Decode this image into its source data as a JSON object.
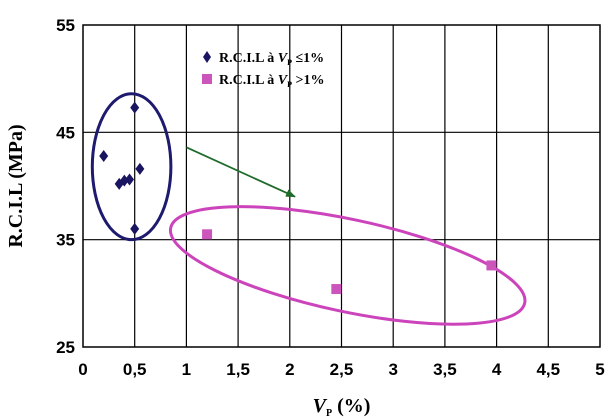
{
  "chart_data": {
    "type": "scatter",
    "xlabel": "V_P (%)",
    "ylabel": "R.C.I.L (MPa)",
    "xlim": [
      0,
      5
    ],
    "ylim": [
      25,
      55
    ],
    "x_ticks": [
      "0",
      "0,5",
      "1",
      "1,5",
      "2",
      "2,5",
      "3",
      "3,5",
      "4",
      "4,5",
      "5"
    ],
    "y_ticks": [
      "25",
      "35",
      "45",
      "55"
    ],
    "grid": true,
    "legend_position": "top-center",
    "series": [
      {
        "name": "R.C.I.L à Vp ≤1%",
        "marker": "diamond",
        "color": "#1a1560",
        "x": [
          0.2,
          0.35,
          0.4,
          0.45,
          0.5,
          0.55,
          0.5
        ],
        "y": [
          42.8,
          40.2,
          40.5,
          40.6,
          47.3,
          41.6,
          36.0
        ]
      },
      {
        "name": "R.C.I.L à Vp >1%",
        "marker": "square",
        "color": "#cc55bb",
        "x": [
          1.2,
          2.45,
          3.95
        ],
        "y": [
          35.5,
          30.4,
          32.6
        ]
      }
    ],
    "annotations": [
      {
        "type": "ellipse",
        "color": "#1e1a6e",
        "center": [
          0.47,
          41.8
        ],
        "rx": 0.38,
        "ry": 6.8,
        "rotation": 0
      },
      {
        "type": "ellipse",
        "color": "#cc44bb",
        "center": [
          2.56,
          32.6
        ],
        "rx": 1.75,
        "ry": 4.3,
        "rotation": 12
      },
      {
        "type": "arrow",
        "color": "#1f6b2a",
        "from": [
          1.0,
          43.6
        ],
        "to": [
          2.05,
          39.0
        ]
      }
    ],
    "legend_labels": [
      {
        "prefix": "R.C.I.L à ",
        "var": "V",
        "sub": "P",
        "suffix": " ≤1%"
      },
      {
        "prefix": "R.C.I.L à ",
        "var": "V",
        "sub": "P",
        "suffix": " >1%"
      }
    ],
    "xlabel_parts": {
      "var": "V",
      "sub": "P",
      "suffix": " (%)"
    }
  }
}
